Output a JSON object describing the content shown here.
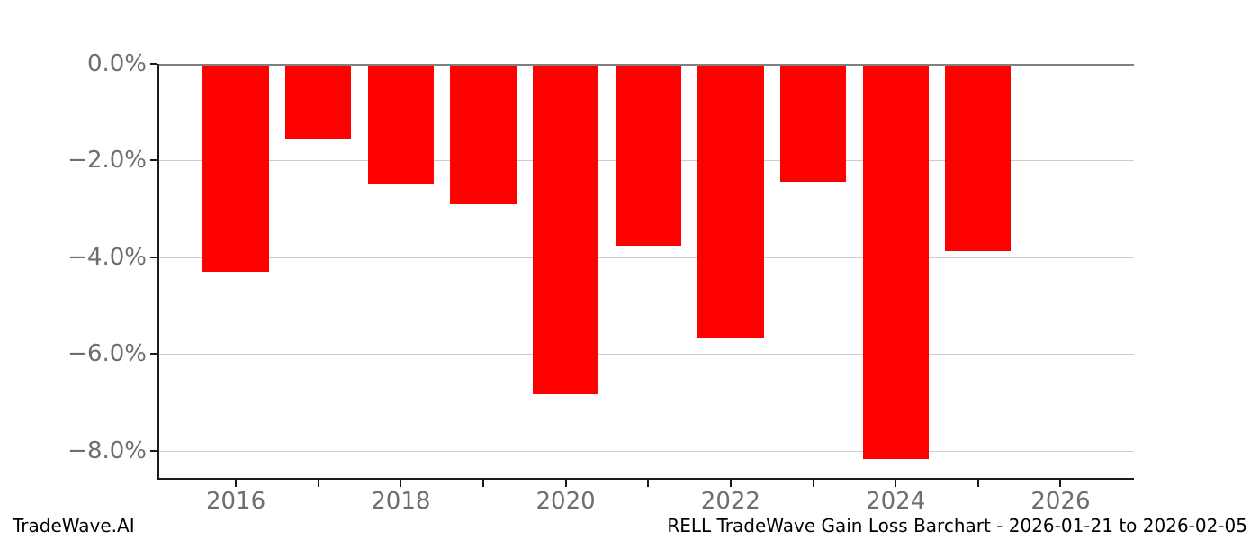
{
  "chart_data": {
    "type": "bar",
    "categories": [
      2016,
      2017,
      2018,
      2019,
      2020,
      2021,
      2022,
      2023,
      2024,
      2025
    ],
    "values": [
      -4.3,
      -1.55,
      -2.48,
      -2.91,
      -6.83,
      -3.76,
      -5.68,
      -2.44,
      -8.18,
      -3.88
    ],
    "title": "",
    "xlabel": "",
    "ylabel": "",
    "ylim": [
      -8.6,
      0
    ],
    "xlim": [
      2015.05,
      2026.89
    ],
    "bar_width": 0.8,
    "bar_color": "#ff0000",
    "grid": "horizontal",
    "legend": "none",
    "yticks": [
      {
        "value": 0,
        "label": "0.0%"
      },
      {
        "value": -2,
        "label": "−2.0%"
      },
      {
        "value": -4,
        "label": "−4.0%"
      },
      {
        "value": -6,
        "label": "−6.0%"
      },
      {
        "value": -8,
        "label": "−8.0%"
      }
    ],
    "xticks": [
      {
        "value": 2016,
        "label": "2016"
      },
      {
        "value": 2017,
        "label": ""
      },
      {
        "value": 2018,
        "label": "2018"
      },
      {
        "value": 2019,
        "label": ""
      },
      {
        "value": 2020,
        "label": "2020"
      },
      {
        "value": 2021,
        "label": ""
      },
      {
        "value": 2022,
        "label": "2022"
      },
      {
        "value": 2023,
        "label": ""
      },
      {
        "value": 2024,
        "label": "2024"
      },
      {
        "value": 2025,
        "label": ""
      },
      {
        "value": 2026,
        "label": "2026"
      }
    ]
  },
  "colors": {
    "bar": "#ff0000",
    "gridline": "#cccccc",
    "zero_line": "#808080",
    "spine": "#1a1a1a",
    "tick_label": "#6e6e6e",
    "footer_text": "#000000"
  },
  "footer": {
    "brand": "TradeWave.AI",
    "caption": "RELL TradeWave Gain Loss Barchart - 2026-01-21 to 2026-02-05"
  }
}
